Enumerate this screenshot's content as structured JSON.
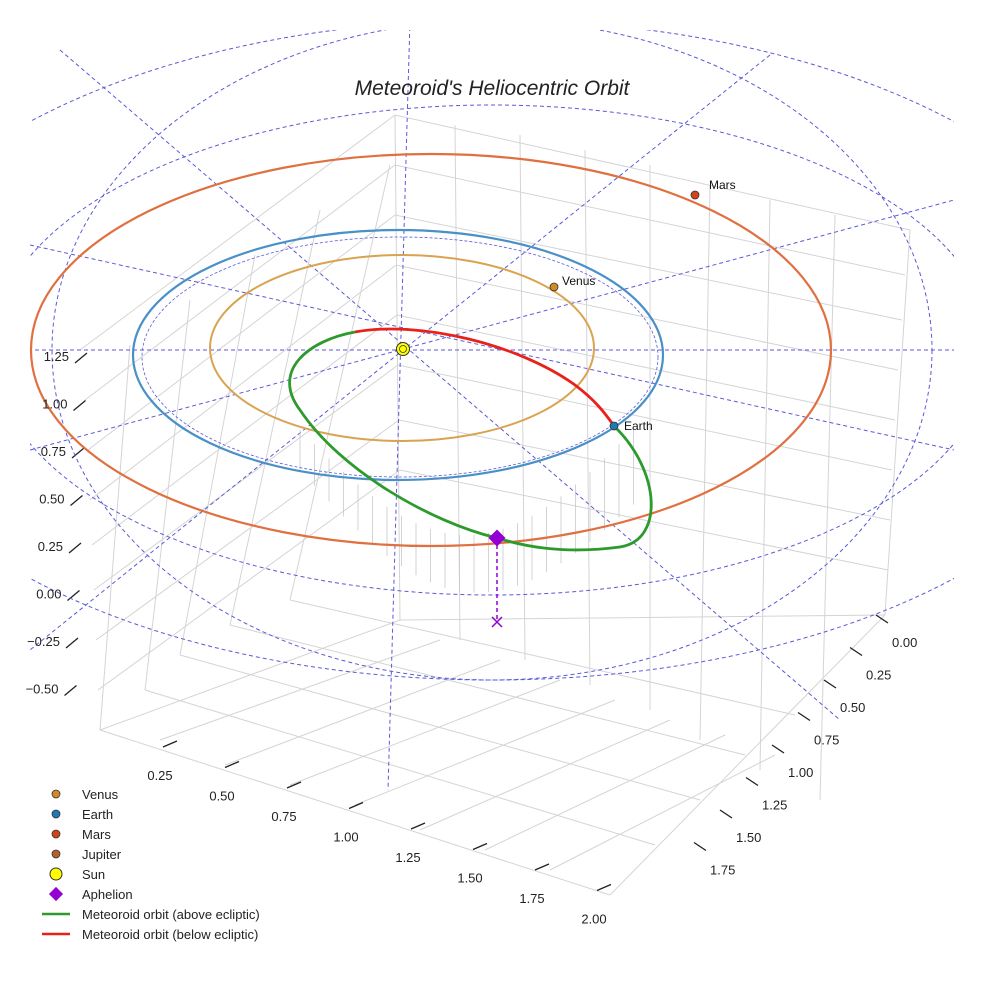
{
  "chart_data": {
    "type": "scatter",
    "projection": "3d",
    "title": "Meteoroid's Heliocentric Orbit",
    "axes": {
      "z_ticks": [
        "1.25",
        "1.00",
        "0.75",
        "0.50",
        "0.25",
        "0.00",
        "−0.25",
        "−0.50"
      ],
      "x_ticks": [
        "0.25",
        "0.50",
        "0.75",
        "1.00",
        "1.25",
        "1.50",
        "1.75",
        "2.00"
      ],
      "y_ticks": [
        "0.00",
        "0.25",
        "0.50",
        "0.75",
        "1.00",
        "1.25",
        "1.50",
        "1.75"
      ]
    },
    "series": [
      {
        "name": "Venus",
        "kind": "planet",
        "color": "#d08a2a",
        "orbit_color": "#d9a350",
        "orbit_radius_au": 0.72,
        "label": "Venus"
      },
      {
        "name": "Earth",
        "kind": "planet",
        "color": "#1f77b4",
        "orbit_color": "#4a90c8",
        "orbit_radius_au": 1.0,
        "label": "Earth"
      },
      {
        "name": "Mars",
        "kind": "planet",
        "color": "#d0461a",
        "orbit_color": "#e07040",
        "orbit_radius_au": 1.52,
        "label": "Mars"
      },
      {
        "name": "Jupiter",
        "kind": "planet",
        "color": "#b5602c"
      },
      {
        "name": "Sun",
        "kind": "star",
        "color": "#ffff00"
      },
      {
        "name": "Aphelion",
        "kind": "marker",
        "color": "#9400d3"
      },
      {
        "name": "Meteoroid orbit (above ecliptic)",
        "kind": "line",
        "color": "#2e9a2e"
      },
      {
        "name": "Meteoroid orbit (below ecliptic)",
        "kind": "line",
        "color": "#e8221b"
      }
    ],
    "legend_position": "bottom-left",
    "grid": true
  },
  "colors": {
    "guide": "#5a5ad8",
    "grid": "#d4d4d4",
    "aphelion_drop": "#9400d3"
  }
}
